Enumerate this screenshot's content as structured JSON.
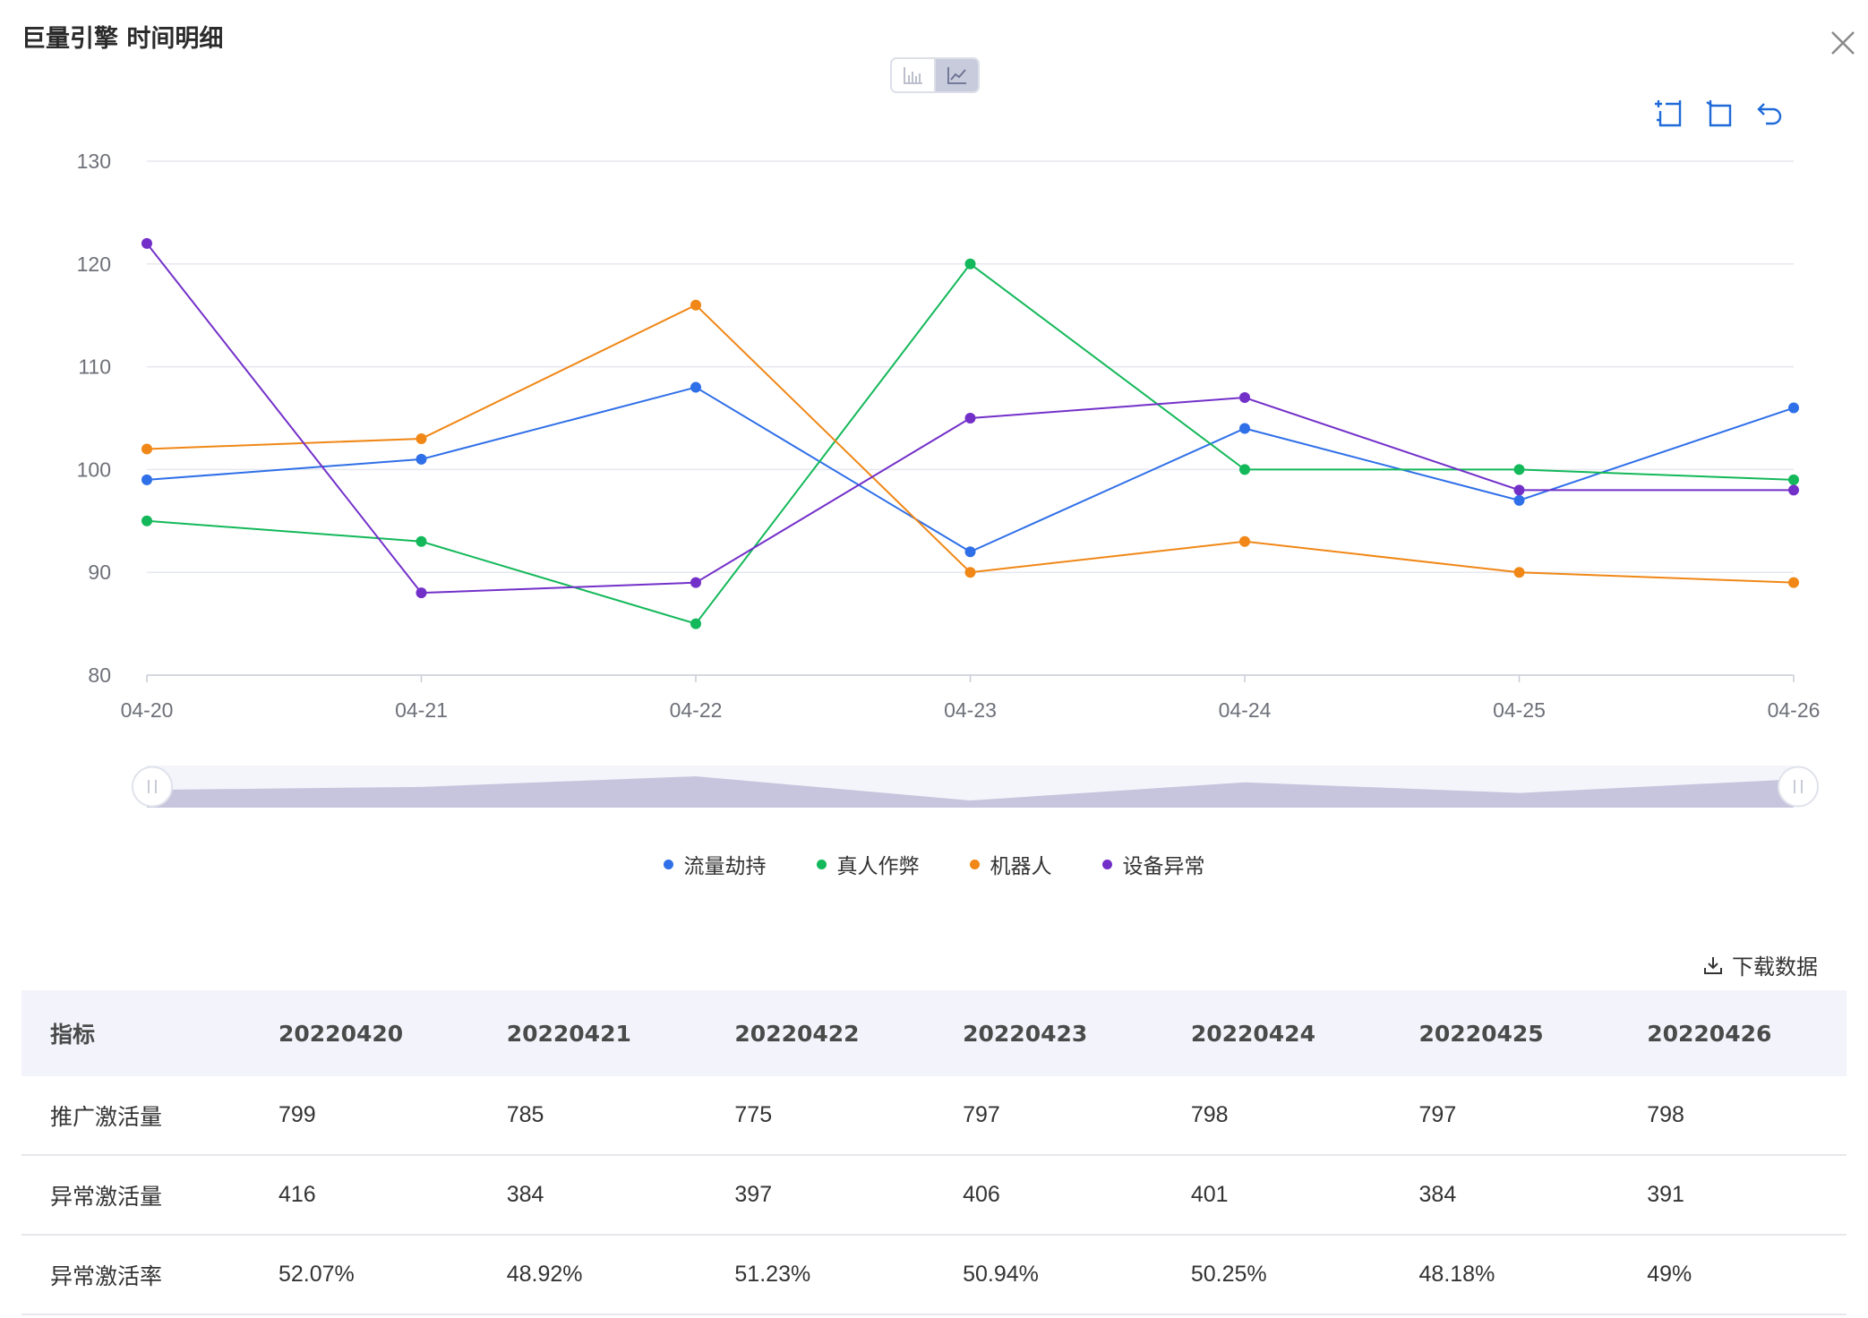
{
  "dialog": {
    "title": "巨量引擎 时间明细"
  },
  "toolbar": {
    "icons": [
      "zoom-area-icon",
      "zoom-reset-icon",
      "undo-icon"
    ]
  },
  "view_toggle": {
    "active": "line",
    "options": [
      "bar",
      "line"
    ]
  },
  "chart_data": {
    "type": "line",
    "x": [
      "04-20",
      "04-21",
      "04-22",
      "04-23",
      "04-24",
      "04-25",
      "04-26"
    ],
    "ylim": [
      80,
      130
    ],
    "yticks": [
      80,
      90,
      100,
      110,
      120,
      130
    ],
    "grid": true,
    "legend_position": "bottom",
    "series": [
      {
        "name": "流量劫持",
        "color": "#2f6fe8",
        "values": [
          99,
          101,
          108,
          92,
          104,
          97,
          106
        ]
      },
      {
        "name": "真人作弊",
        "color": "#13b85a",
        "values": [
          95,
          93,
          85,
          120,
          100,
          100,
          99
        ]
      },
      {
        "name": "机器人",
        "color": "#f08716",
        "values": [
          102,
          103,
          116,
          90,
          93,
          90,
          89
        ]
      },
      {
        "name": "设备异常",
        "color": "#7330c9",
        "values": [
          122,
          88,
          89,
          105,
          107,
          98,
          98
        ]
      }
    ],
    "data_zoom": {
      "start": 0,
      "end": 1
    }
  },
  "download": {
    "label": "下载数据"
  },
  "table": {
    "headers": [
      "指标",
      "20220420",
      "20220421",
      "20220422",
      "20220423",
      "20220424",
      "20220425",
      "20220426"
    ],
    "rows": [
      [
        "推广激活量",
        "799",
        "785",
        "775",
        "797",
        "798",
        "797",
        "798"
      ],
      [
        "异常激活量",
        "416",
        "384",
        "397",
        "406",
        "401",
        "384",
        "391"
      ],
      [
        "异常激活率",
        "52.07%",
        "48.92%",
        "51.23%",
        "50.94%",
        "50.25%",
        "48.18%",
        "49%"
      ]
    ]
  }
}
